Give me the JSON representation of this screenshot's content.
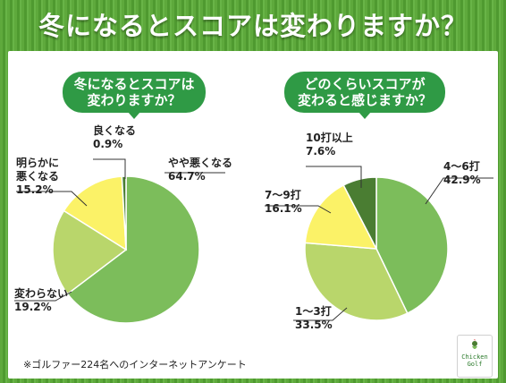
{
  "title": "冬になるとスコアは変わりますか？",
  "footnote": "※ゴルファー224名へのインターネットアンケート",
  "logo": {
    "line1": "Chicken",
    "line2": "Golf",
    "icon": "chicken-icon"
  },
  "colors": {
    "bg_green": "#5ea93c",
    "pill": "#2f9a45",
    "dark_green": "#4a7d32",
    "mid_green": "#7cbd5b",
    "light_green": "#b9d66b",
    "yellow": "#fbf267"
  },
  "chart_data": [
    {
      "type": "pie",
      "title_lines": [
        "冬になるとスコアは",
        "変わりますか？"
      ],
      "slices": [
        {
          "label_lines": [
            "やや悪くなる"
          ],
          "value": 64.7,
          "value_text": "64.7%",
          "color": "#7cbd5b"
        },
        {
          "label_lines": [
            "変わらない"
          ],
          "value": 19.2,
          "value_text": "19.2%",
          "color": "#b9d66b"
        },
        {
          "label_lines": [
            "明らかに",
            "悪くなる"
          ],
          "value": 15.2,
          "value_text": "15.2%",
          "color": "#fbf267"
        },
        {
          "label_lines": [
            "良くなる"
          ],
          "value": 0.9,
          "value_text": "0.9%",
          "color": "#4a7d32"
        }
      ]
    },
    {
      "type": "pie",
      "title_lines": [
        "どのくらいスコアが",
        "変わると感じますか？"
      ],
      "slices": [
        {
          "label_lines": [
            "4〜6打"
          ],
          "value": 42.9,
          "value_text": "42.9%",
          "color": "#7cbd5b"
        },
        {
          "label_lines": [
            "1〜3打"
          ],
          "value": 33.5,
          "value_text": "33.5%",
          "color": "#b9d66b"
        },
        {
          "label_lines": [
            "7〜9打"
          ],
          "value": 16.1,
          "value_text": "16.1%",
          "color": "#fbf267"
        },
        {
          "label_lines": [
            "10打以上"
          ],
          "value": 7.6,
          "value_text": "7.6%",
          "color": "#4a7d32"
        }
      ]
    }
  ]
}
